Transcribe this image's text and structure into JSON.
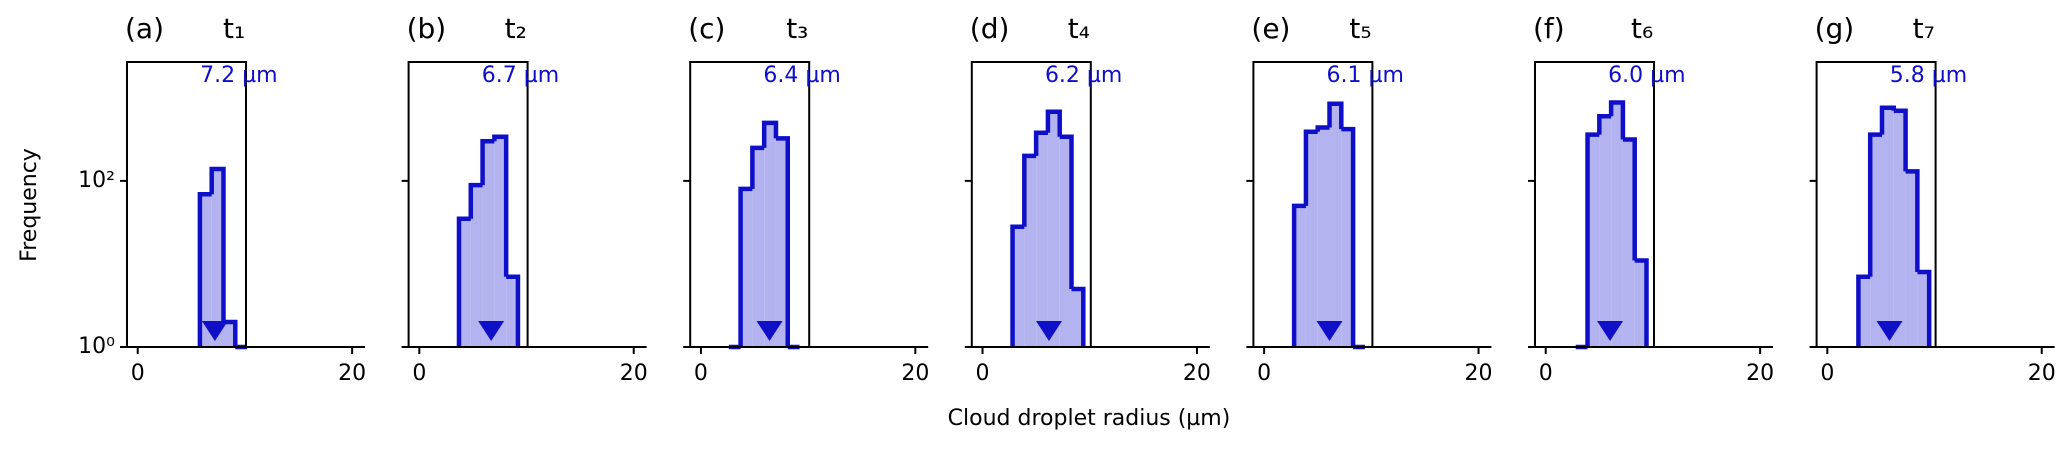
{
  "figure": {
    "ylabel": "Frequency",
    "xlabel": "Cloud droplet radius (µm)"
  },
  "chart_data": [
    {
      "type": "histogram",
      "panel": "(a)",
      "title": "t₁",
      "mean": 7.2,
      "mean_label": "7.2 µm",
      "bins": [
        5.8,
        6.9,
        8.0,
        9.1,
        10.2
      ],
      "values": [
        69,
        139,
        2,
        1
      ],
      "xlim": [
        -1,
        21.2
      ],
      "xticks": [
        0,
        20
      ],
      "ylim": [
        1,
        2700
      ],
      "log_y": true,
      "yticks": [
        {
          "value": 1,
          "label": "10⁰"
        },
        {
          "value": 100,
          "label": "10²"
        }
      ],
      "color": "#0f0fc8",
      "fill": "#b3b3f0"
    },
    {
      "type": "histogram",
      "panel": "(b)",
      "title": "t₂",
      "mean": 6.7,
      "mean_label": "6.7 µm",
      "bins": [
        3.7,
        4.8,
        5.9,
        7.0,
        8.1,
        9.2
      ],
      "values": [
        35,
        89,
        300,
        340,
        7
      ],
      "xlim": [
        -1,
        21.2
      ],
      "xticks": [
        0,
        20
      ],
      "ylim": [
        1,
        2700
      ],
      "log_y": true,
      "yticks": [
        1,
        100
      ],
      "color": "#0f0fc8",
      "fill": "#b3b3f0"
    },
    {
      "type": "histogram",
      "panel": "(c)",
      "title": "t₃",
      "mean": 6.4,
      "mean_label": "6.4 µm",
      "bins": [
        2.6,
        3.7,
        4.8,
        5.9,
        7.0,
        8.1,
        9.2
      ],
      "values": [
        1,
        80,
        250,
        500,
        325,
        1
      ],
      "xlim": [
        -1,
        21.2
      ],
      "xticks": [
        0,
        20
      ],
      "ylim": [
        1,
        2700
      ],
      "log_y": true,
      "yticks": [
        1,
        100
      ],
      "color": "#0f0fc8",
      "fill": "#b3b3f0"
    },
    {
      "type": "histogram",
      "panel": "(d)",
      "title": "t₄",
      "mean": 6.2,
      "mean_label": "6.2 µm",
      "bins": [
        2.8,
        3.9,
        5.0,
        6.1,
        7.2,
        8.3,
        9.4
      ],
      "values": [
        28,
        200,
        380,
        680,
        340,
        5
      ],
      "xlim": [
        -1,
        21.2
      ],
      "xticks": [
        0,
        20
      ],
      "ylim": [
        1,
        2700
      ],
      "log_y": true,
      "yticks": [
        1,
        100
      ],
      "color": "#0f0fc8",
      "fill": "#b3b3f0"
    },
    {
      "type": "histogram",
      "panel": "(e)",
      "title": "t₅",
      "mean": 6.1,
      "mean_label": "6.1 µm",
      "bins": [
        2.8,
        3.9,
        5.0,
        6.1,
        7.2,
        8.3,
        9.4
      ],
      "values": [
        50,
        390,
        440,
        850,
        420,
        1
      ],
      "xlim": [
        -1,
        21.2
      ],
      "xticks": [
        0,
        20
      ],
      "ylim": [
        1,
        2700
      ],
      "log_y": true,
      "yticks": [
        1,
        100
      ],
      "color": "#0f0fc8",
      "fill": "#b3b3f0"
    },
    {
      "type": "histogram",
      "panel": "(f)",
      "title": "t₆",
      "mean": 6.0,
      "mean_label": "6.0 µm",
      "bins": [
        2.8,
        3.9,
        5.0,
        6.1,
        7.2,
        8.3,
        9.4
      ],
      "values": [
        1,
        360,
        600,
        880,
        315,
        11
      ],
      "xlim": [
        -1,
        21.2
      ],
      "xticks": [
        0,
        20
      ],
      "ylim": [
        1,
        2700
      ],
      "log_y": true,
      "yticks": [
        1,
        100
      ],
      "color": "#0f0fc8",
      "fill": "#b3b3f0"
    },
    {
      "type": "histogram",
      "panel": "(g)",
      "title": "t₇",
      "mean": 5.8,
      "mean_label": "5.8 µm",
      "bins": [
        2.9,
        4.0,
        5.1,
        6.2,
        7.3,
        8.4,
        9.5
      ],
      "values": [
        7,
        360,
        760,
        700,
        130,
        8
      ],
      "xlim": [
        -1,
        21.2
      ],
      "xticks": [
        0,
        20
      ],
      "ylim": [
        1,
        2700
      ],
      "log_y": true,
      "yticks": [
        1,
        100
      ],
      "color": "#0f0fc8",
      "fill": "#b3b3f0"
    }
  ]
}
